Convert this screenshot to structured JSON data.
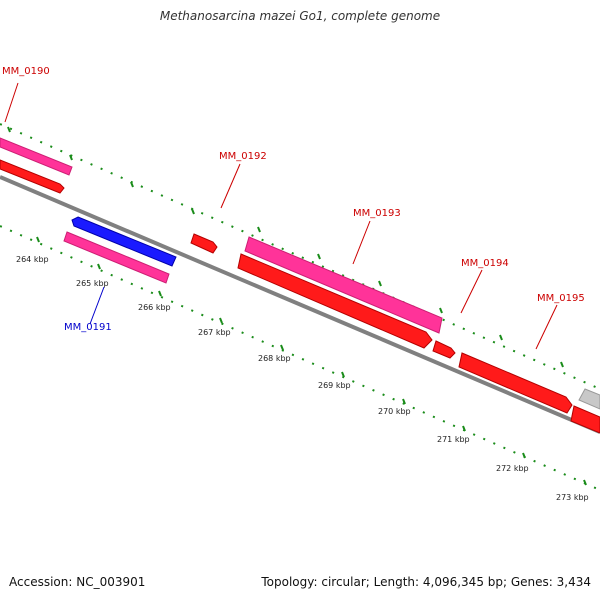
{
  "title": "Methanosarcina mazei Go1, complete genome",
  "footer": {
    "accession": "Accession: NC_003901",
    "summary": "Topology: circular; Length: 4,096,345 bp; Genes: 3,434"
  },
  "scale_labels": [
    "264 kbp",
    "265 kbp",
    "266 kbp",
    "267 kbp",
    "268 kbp",
    "269 kbp",
    "270 kbp",
    "271 kbp",
    "272 kbp",
    "273 kbp"
  ],
  "gene_labels": [
    {
      "text": "MM_0190",
      "color": "#cc0000"
    },
    {
      "text": "MM_0191",
      "color": "#0000cc"
    },
    {
      "text": "MM_0192",
      "color": "#cc0000"
    },
    {
      "text": "MM_0193",
      "color": "#cc0000"
    },
    {
      "text": "MM_0194",
      "color": "#cc0000"
    },
    {
      "text": "MM_0195",
      "color": "#cc0000"
    }
  ],
  "colors": {
    "backbone": "#808080",
    "cds_forward": "#ff1a1a",
    "cds_reverse": "#1a1aff",
    "gene": "#ff3399",
    "tick": "#1a8c1a",
    "other": "#c8c8c8"
  }
}
